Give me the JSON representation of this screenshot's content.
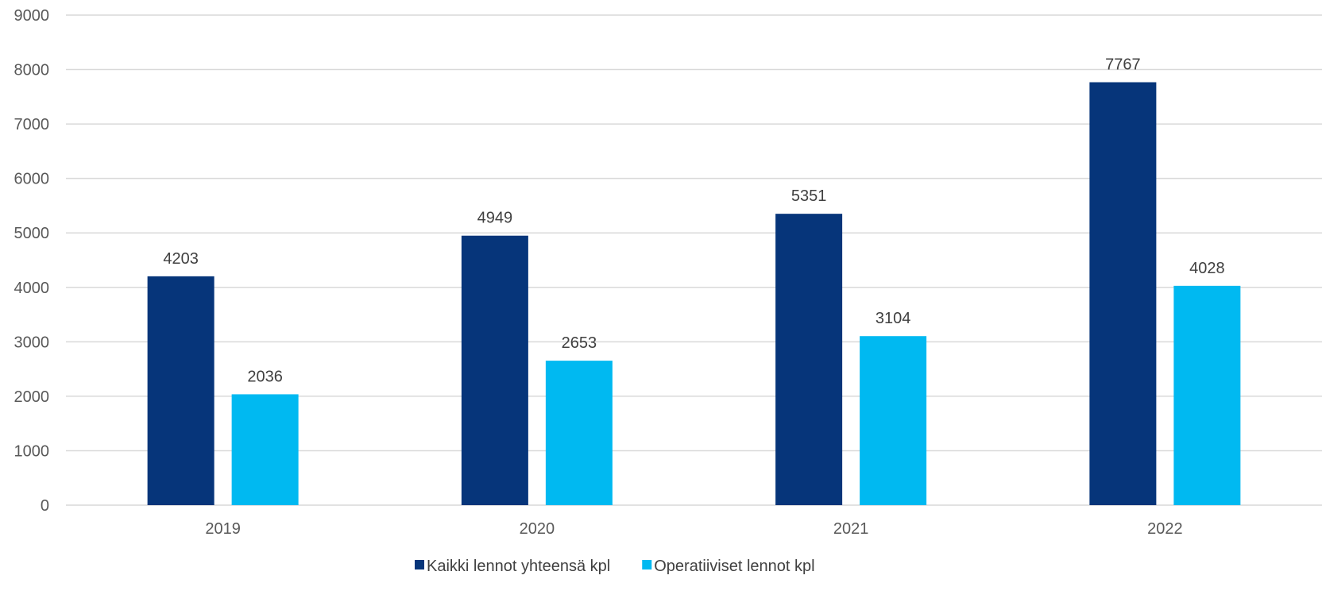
{
  "chart_data": {
    "type": "bar",
    "categories": [
      "2019",
      "2020",
      "2021",
      "2022"
    ],
    "series": [
      {
        "name": "Kaikki lennot yhteensä kpl",
        "values": [
          4203,
          4949,
          5351,
          7767
        ],
        "color": "#06357a"
      },
      {
        "name": "Operatiiviset lennot kpl",
        "values": [
          2036,
          2653,
          3104,
          4028
        ],
        "color": "#00b9f1"
      }
    ],
    "ylim": [
      0,
      9000
    ],
    "yticks": [
      0,
      1000,
      2000,
      3000,
      4000,
      5000,
      6000,
      7000,
      8000,
      9000
    ],
    "grid": true,
    "legend_position": "bottom",
    "data_labels": true
  }
}
